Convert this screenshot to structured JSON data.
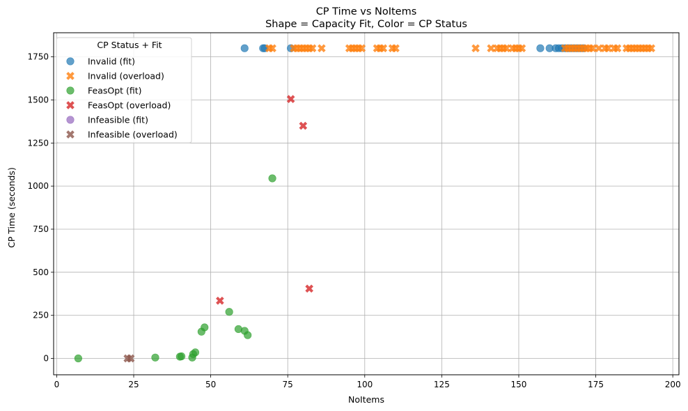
{
  "chart_data": {
    "type": "scatter",
    "title": "CP Time vs NoItems",
    "subtitle": "Shape = Capacity Fit, Color = CP Status",
    "xlabel": "NoItems",
    "ylabel": "CP Time (seconds)",
    "xlim": [
      -1,
      202
    ],
    "ylim": [
      -95,
      1890
    ],
    "xticks": [
      0,
      25,
      50,
      75,
      100,
      125,
      150,
      175,
      200
    ],
    "yticks": [
      0,
      250,
      500,
      750,
      1000,
      1250,
      1500,
      1750
    ],
    "grid": true,
    "legend": {
      "title": "CP Status + Fit",
      "placement": "top-left"
    },
    "series": [
      {
        "name": "Invalid (fit)",
        "marker": "circle",
        "color": "#1f77b4",
        "points": [
          [
            61,
            1800
          ],
          [
            67,
            1800
          ],
          [
            67.5,
            1800
          ],
          [
            76,
            1800
          ],
          [
            157,
            1800
          ],
          [
            160,
            1800
          ],
          [
            162,
            1800
          ],
          [
            163,
            1800
          ],
          [
            164,
            1800
          ],
          [
            165,
            1800
          ],
          [
            166,
            1800
          ],
          [
            167,
            1800
          ],
          [
            168,
            1800
          ],
          [
            169,
            1800
          ],
          [
            170,
            1800
          ],
          [
            171,
            1800
          ]
        ]
      },
      {
        "name": "Invalid (overload)",
        "marker": "x",
        "color": "#ff7f0e",
        "points": [
          [
            69,
            1800
          ],
          [
            70,
            1800
          ],
          [
            77,
            1800
          ],
          [
            78,
            1800
          ],
          [
            79,
            1800
          ],
          [
            80,
            1800
          ],
          [
            81,
            1800
          ],
          [
            82,
            1800
          ],
          [
            83,
            1800
          ],
          [
            86,
            1800
          ],
          [
            95,
            1800
          ],
          [
            96,
            1800
          ],
          [
            97,
            1800
          ],
          [
            98,
            1800
          ],
          [
            99,
            1800
          ],
          [
            104,
            1800
          ],
          [
            105,
            1800
          ],
          [
            106,
            1800
          ],
          [
            109,
            1800
          ],
          [
            110,
            1800
          ],
          [
            136,
            1800
          ],
          [
            141,
            1800
          ],
          [
            143,
            1800
          ],
          [
            144,
            1800
          ],
          [
            145,
            1800
          ],
          [
            146,
            1800
          ],
          [
            148,
            1800
          ],
          [
            149,
            1800
          ],
          [
            150,
            1800
          ],
          [
            151,
            1800
          ],
          [
            165,
            1800
          ],
          [
            166,
            1800
          ],
          [
            167,
            1800
          ],
          [
            168,
            1800
          ],
          [
            169,
            1800
          ],
          [
            170,
            1800
          ],
          [
            171,
            1800
          ],
          [
            172,
            1800
          ],
          [
            173,
            1800
          ],
          [
            174,
            1800
          ],
          [
            176,
            1800
          ],
          [
            178,
            1800
          ],
          [
            179,
            1800
          ],
          [
            181,
            1800
          ],
          [
            182,
            1800
          ],
          [
            185,
            1800
          ],
          [
            186,
            1800
          ],
          [
            187,
            1800
          ],
          [
            188,
            1800
          ],
          [
            189,
            1800
          ],
          [
            190,
            1800
          ],
          [
            191,
            1800
          ],
          [
            192,
            1800
          ],
          [
            193,
            1800
          ]
        ]
      },
      {
        "name": "FeasOpt (fit)",
        "marker": "circle",
        "color": "#2ca02c",
        "points": [
          [
            7,
            0
          ],
          [
            32,
            5
          ],
          [
            40,
            10
          ],
          [
            40.5,
            12
          ],
          [
            44,
            5
          ],
          [
            44.3,
            25
          ],
          [
            45,
            35
          ],
          [
            47,
            155
          ],
          [
            48,
            180
          ],
          [
            56,
            270
          ],
          [
            59,
            170
          ],
          [
            61,
            160
          ],
          [
            62,
            135
          ],
          [
            70,
            1045
          ]
        ]
      },
      {
        "name": "FeasOpt (overload)",
        "marker": "x",
        "color": "#d62728",
        "points": [
          [
            53,
            335
          ],
          [
            76,
            1505
          ],
          [
            80,
            1350
          ],
          [
            82,
            405
          ]
        ]
      },
      {
        "name": "Infeasible (fit)",
        "marker": "circle",
        "color": "#9467bd",
        "points": []
      },
      {
        "name": "Infeasible (overload)",
        "marker": "x",
        "color": "#8c564b",
        "points": [
          [
            23,
            0
          ],
          [
            24,
            0
          ]
        ]
      }
    ]
  }
}
